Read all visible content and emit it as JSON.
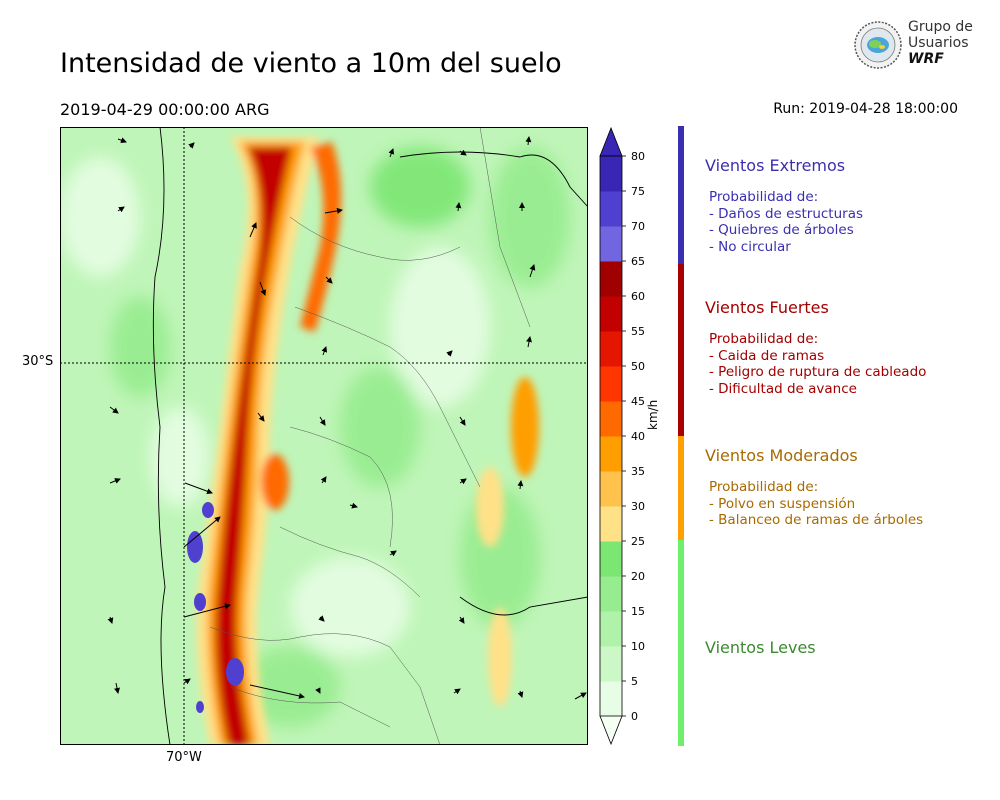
{
  "header": {
    "title": "Intensidad de viento a 10m del suelo",
    "valid_time": "2019-04-29 00:00:00 ARG",
    "run_time": "Run: 2019-04-28 18:00:00"
  },
  "logo": {
    "line1": "Grupo de",
    "line2": "Usuarios",
    "line3": "WRF"
  },
  "map": {
    "lat_label": "30°S",
    "lon_label": "70°W",
    "colorbar": {
      "unit": "km/h",
      "ticks": [
        "0",
        "5",
        "10",
        "15",
        "20",
        "25",
        "30",
        "35",
        "40",
        "45",
        "50",
        "55",
        "60",
        "65",
        "70",
        "75",
        "80"
      ],
      "colors": [
        "#e8fde6",
        "#ccf8c8",
        "#b0f2aa",
        "#96ec8e",
        "#7ce672",
        "#ffe188",
        "#ffc24c",
        "#ff9e00",
        "#ff6a00",
        "#ff3600",
        "#e41600",
        "#c20000",
        "#a00000",
        "#7265e0",
        "#5040d0",
        "#3a26b4"
      ]
    }
  },
  "legend": {
    "categories": [
      {
        "title": "Vientos Extremos",
        "color": "#3a2fb0",
        "items": [
          "Probabilidad de:",
          "- Daños de estructuras",
          "- Quiebres de árboles",
          "- No circular"
        ]
      },
      {
        "title": "Vientos Fuertes",
        "color": "#a30000",
        "items": [
          "Probabilidad de:",
          "- Caida de ramas",
          "- Peligro de ruptura de cableado",
          "- Dificultad de avance"
        ]
      },
      {
        "title": "Vientos Moderados",
        "color": "#a86a00",
        "items": [
          "Probabilidad de:",
          "- Polvo en suspensión",
          "- Balanceo de ramas de árboles"
        ]
      },
      {
        "title": "Vientos Leves",
        "color": "#3a8a2e",
        "items": []
      }
    ],
    "bar_colors": {
      "extremos": "#3a2fb0",
      "fuertes": "#a80000",
      "moderados": "#ffa000",
      "leves": "#6fef6a"
    }
  }
}
